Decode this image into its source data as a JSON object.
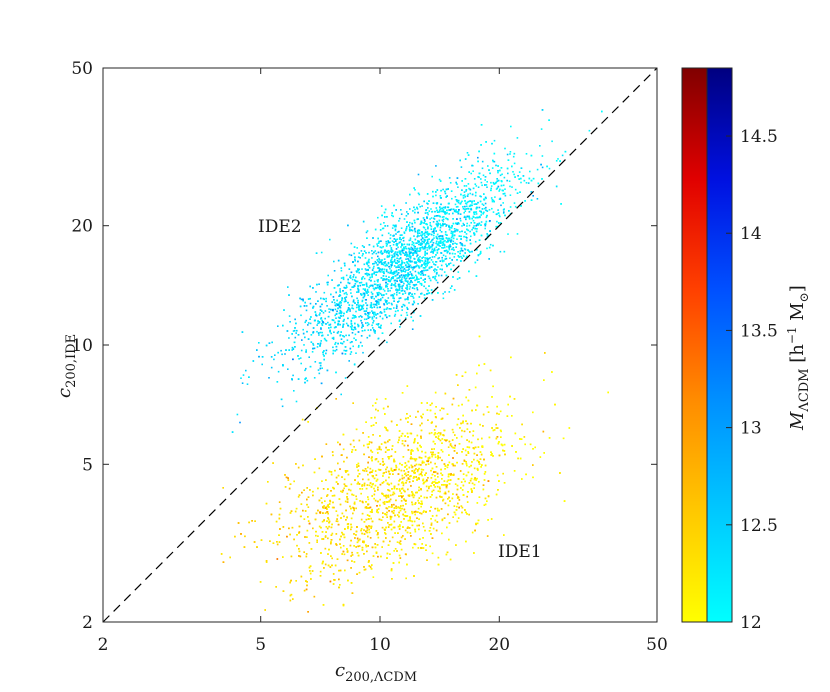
{
  "chart_data": {
    "type": "scatter",
    "x_scale": "log",
    "y_scale": "log",
    "xlim": [
      2,
      50
    ],
    "ylim": [
      2,
      50
    ],
    "xticks": [
      2,
      5,
      10,
      20,
      50
    ],
    "yticks": [
      2,
      5,
      10,
      20,
      50
    ],
    "xtick_labels": [
      "2",
      "5",
      "10",
      "20",
      "50"
    ],
    "ytick_labels": [
      "2",
      "5",
      "10",
      "20",
      "50"
    ],
    "xlabel": {
      "main": "c",
      "sub": "200,ΛCDM"
    },
    "ylabel": {
      "main": "c",
      "sub": "200,IDE"
    },
    "annotations": {
      "ide1": "IDE1",
      "ide2": "IDE2"
    },
    "reference_line": {
      "type": "y=x",
      "style": "dashed",
      "color": "#000000"
    },
    "grid": false,
    "series": [
      {
        "name": "IDE2",
        "colormap": "blue",
        "n_points": 3500,
        "median_x": 11.5,
        "median_y": 16.0,
        "log10_sigma_x": 0.14,
        "log10_sigma_y": 0.12,
        "correlation": 0.85
      },
      {
        "name": "IDE1",
        "colormap": "warm",
        "n_points": 3500,
        "median_x": 11.0,
        "median_y": 4.3,
        "log10_sigma_x": 0.15,
        "log10_sigma_y": 0.11,
        "correlation": 0.55
      }
    ],
    "colorbar": {
      "label": {
        "main": "M",
        "sub": "ΛCDM",
        "units": "[h",
        "units_exp": "−1",
        "units_tail": " M",
        "units_sub": "⊙",
        "close": "]"
      },
      "range": [
        12,
        14.85
      ],
      "ticks": [
        12,
        12.5,
        13,
        13.5,
        14,
        14.5
      ],
      "tick_labels": [
        "12",
        "12.5",
        "13",
        "13.5",
        "14",
        "14.5"
      ],
      "warm_stops": [
        "#ffff00",
        "#ffc800",
        "#ff8c00",
        "#ff4000",
        "#e00000",
        "#800000"
      ],
      "cool_stops": [
        "#00ffff",
        "#00c8ff",
        "#0090ff",
        "#0050ff",
        "#0010e0",
        "#000080"
      ]
    }
  }
}
